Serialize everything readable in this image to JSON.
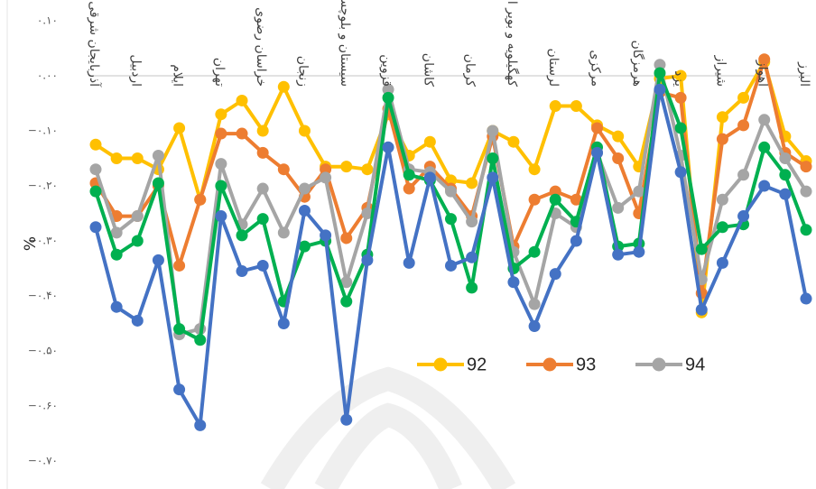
{
  "chart_data": {
    "type": "line",
    "ylabel": "%",
    "ylim": [
      -0.7,
      0.1
    ],
    "y_ticks": [
      "۰.۱۰",
      "۰.۰۰",
      "−۰.۱۰",
      "−۰.۲۰",
      "−۰.۳۰",
      "−۰.۴۰",
      "−۰.۵۰",
      "−۰.۶۰",
      "−۰.۷۰"
    ],
    "y_tick_values": [
      0.1,
      0.0,
      -0.1,
      -0.2,
      -0.3,
      -0.4,
      -0.5,
      -0.6,
      -0.7
    ],
    "categories": [
      "آذربایجان شرقی",
      "",
      "اردبیل",
      "",
      "ایلام",
      "",
      "تهران",
      "",
      "خراسان رضوی",
      "",
      "زنجان",
      "",
      "سیستان و بلوچستان",
      "",
      "قزوین",
      "",
      "کاشان",
      "",
      "کرمان",
      "",
      "کهگیلویه و بویر احمد",
      "",
      "لرستان",
      "",
      "مرکزی",
      "",
      "هرمزگان",
      "",
      "یزد",
      "",
      "شیراز",
      "",
      "اهواز",
      "",
      "البرز"
    ],
    "legend_position": "inside-right",
    "series": [
      {
        "name": "92",
        "color": "#FFC000",
        "show_in_legend": true,
        "values": [
          -0.125,
          -0.15,
          -0.15,
          -0.17,
          -0.095,
          -0.225,
          -0.07,
          -0.045,
          -0.1,
          -0.02,
          -0.1,
          -0.165,
          -0.165,
          -0.17,
          -0.07,
          -0.145,
          -0.12,
          -0.19,
          -0.195,
          -0.1,
          -0.12,
          -0.17,
          -0.055,
          -0.055,
          -0.09,
          -0.11,
          -0.165,
          -0.005,
          0.0,
          -0.43,
          -0.075,
          -0.04,
          0.025,
          -0.11,
          -0.155
        ]
      },
      {
        "name": "93",
        "color": "#ED7D31",
        "show_in_legend": true,
        "values": [
          -0.195,
          -0.255,
          -0.255,
          -0.2,
          -0.345,
          -0.225,
          -0.105,
          -0.105,
          -0.14,
          -0.17,
          -0.22,
          -0.17,
          -0.295,
          -0.24,
          -0.06,
          -0.205,
          -0.165,
          -0.205,
          -0.255,
          -0.11,
          -0.31,
          -0.225,
          -0.21,
          -0.225,
          -0.095,
          -0.15,
          -0.25,
          -0.03,
          -0.04,
          -0.395,
          -0.115,
          -0.09,
          0.03,
          -0.14,
          -0.165
        ]
      },
      {
        "name": "94",
        "color": "#A5A5A5",
        "show_in_legend": true,
        "values": [
          -0.17,
          -0.285,
          -0.255,
          -0.145,
          -0.47,
          -0.46,
          -0.16,
          -0.27,
          -0.205,
          -0.285,
          -0.205,
          -0.185,
          -0.375,
          -0.25,
          -0.025,
          -0.17,
          -0.175,
          -0.21,
          -0.265,
          -0.1,
          -0.32,
          -0.415,
          -0.25,
          -0.275,
          -0.14,
          -0.24,
          -0.21,
          0.02,
          -0.145,
          -0.37,
          -0.225,
          -0.18,
          -0.08,
          -0.15,
          -0.21
        ]
      },
      {
        "name": "",
        "color": "#00B050",
        "show_in_legend": false,
        "values": [
          -0.21,
          -0.325,
          -0.3,
          -0.195,
          -0.46,
          -0.48,
          -0.2,
          -0.29,
          -0.26,
          -0.41,
          -0.31,
          -0.3,
          -0.41,
          -0.325,
          -0.04,
          -0.18,
          -0.19,
          -0.26,
          -0.385,
          -0.15,
          -0.35,
          -0.32,
          -0.225,
          -0.265,
          -0.13,
          -0.31,
          -0.305,
          0.005,
          -0.095,
          -0.315,
          -0.275,
          -0.27,
          -0.13,
          -0.18,
          -0.28
        ]
      },
      {
        "name": "",
        "color": "#4472C4",
        "show_in_legend": false,
        "values": [
          -0.275,
          -0.42,
          -0.445,
          -0.335,
          -0.57,
          -0.635,
          -0.255,
          -0.355,
          -0.345,
          -0.45,
          -0.245,
          -0.29,
          -0.625,
          -0.335,
          -0.13,
          -0.34,
          -0.185,
          -0.345,
          -0.33,
          -0.185,
          -0.375,
          -0.455,
          -0.36,
          -0.3,
          -0.14,
          -0.325,
          -0.32,
          -0.025,
          -0.175,
          -0.425,
          -0.34,
          -0.255,
          -0.2,
          -0.215,
          -0.405
        ]
      }
    ]
  }
}
